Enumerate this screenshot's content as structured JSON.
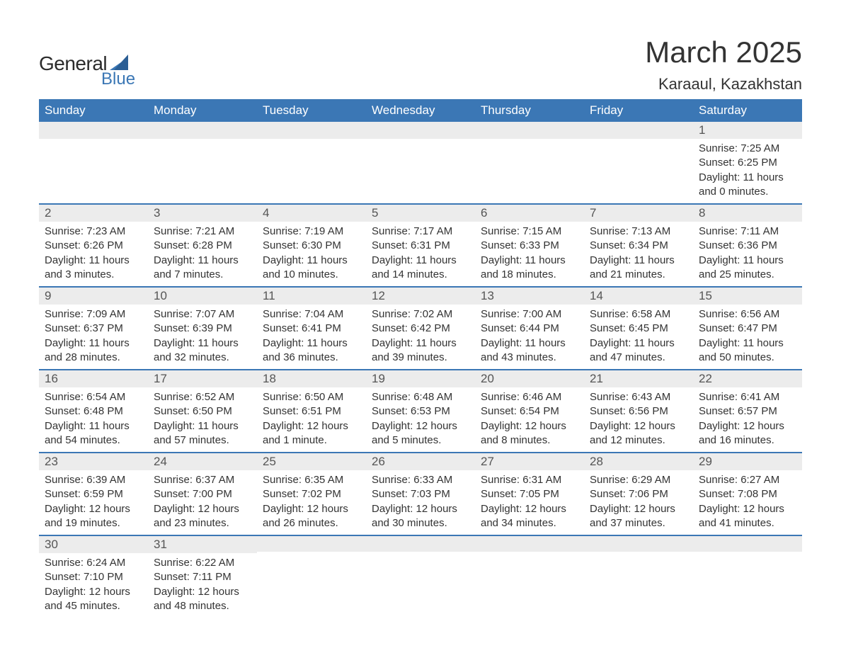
{
  "logo": {
    "general": "General",
    "blue": "Blue"
  },
  "title": "March 2025",
  "location": "Karaaul, Kazakhstan",
  "colors": {
    "header_bg": "#3b77b5",
    "header_text": "#ffffff",
    "row_band": "#ececec",
    "row_border": "#3b77b5",
    "body_text": "#333333",
    "logo_blue": "#3b77b5"
  },
  "day_headers": [
    "Sunday",
    "Monday",
    "Tuesday",
    "Wednesday",
    "Thursday",
    "Friday",
    "Saturday"
  ],
  "weeks": [
    [
      null,
      null,
      null,
      null,
      null,
      null,
      {
        "n": "1",
        "sunrise": "Sunrise: 7:25 AM",
        "sunset": "Sunset: 6:25 PM",
        "day1": "Daylight: 11 hours",
        "day2": "and 0 minutes."
      }
    ],
    [
      {
        "n": "2",
        "sunrise": "Sunrise: 7:23 AM",
        "sunset": "Sunset: 6:26 PM",
        "day1": "Daylight: 11 hours",
        "day2": "and 3 minutes."
      },
      {
        "n": "3",
        "sunrise": "Sunrise: 7:21 AM",
        "sunset": "Sunset: 6:28 PM",
        "day1": "Daylight: 11 hours",
        "day2": "and 7 minutes."
      },
      {
        "n": "4",
        "sunrise": "Sunrise: 7:19 AM",
        "sunset": "Sunset: 6:30 PM",
        "day1": "Daylight: 11 hours",
        "day2": "and 10 minutes."
      },
      {
        "n": "5",
        "sunrise": "Sunrise: 7:17 AM",
        "sunset": "Sunset: 6:31 PM",
        "day1": "Daylight: 11 hours",
        "day2": "and 14 minutes."
      },
      {
        "n": "6",
        "sunrise": "Sunrise: 7:15 AM",
        "sunset": "Sunset: 6:33 PM",
        "day1": "Daylight: 11 hours",
        "day2": "and 18 minutes."
      },
      {
        "n": "7",
        "sunrise": "Sunrise: 7:13 AM",
        "sunset": "Sunset: 6:34 PM",
        "day1": "Daylight: 11 hours",
        "day2": "and 21 minutes."
      },
      {
        "n": "8",
        "sunrise": "Sunrise: 7:11 AM",
        "sunset": "Sunset: 6:36 PM",
        "day1": "Daylight: 11 hours",
        "day2": "and 25 minutes."
      }
    ],
    [
      {
        "n": "9",
        "sunrise": "Sunrise: 7:09 AM",
        "sunset": "Sunset: 6:37 PM",
        "day1": "Daylight: 11 hours",
        "day2": "and 28 minutes."
      },
      {
        "n": "10",
        "sunrise": "Sunrise: 7:07 AM",
        "sunset": "Sunset: 6:39 PM",
        "day1": "Daylight: 11 hours",
        "day2": "and 32 minutes."
      },
      {
        "n": "11",
        "sunrise": "Sunrise: 7:04 AM",
        "sunset": "Sunset: 6:41 PM",
        "day1": "Daylight: 11 hours",
        "day2": "and 36 minutes."
      },
      {
        "n": "12",
        "sunrise": "Sunrise: 7:02 AM",
        "sunset": "Sunset: 6:42 PM",
        "day1": "Daylight: 11 hours",
        "day2": "and 39 minutes."
      },
      {
        "n": "13",
        "sunrise": "Sunrise: 7:00 AM",
        "sunset": "Sunset: 6:44 PM",
        "day1": "Daylight: 11 hours",
        "day2": "and 43 minutes."
      },
      {
        "n": "14",
        "sunrise": "Sunrise: 6:58 AM",
        "sunset": "Sunset: 6:45 PM",
        "day1": "Daylight: 11 hours",
        "day2": "and 47 minutes."
      },
      {
        "n": "15",
        "sunrise": "Sunrise: 6:56 AM",
        "sunset": "Sunset: 6:47 PM",
        "day1": "Daylight: 11 hours",
        "day2": "and 50 minutes."
      }
    ],
    [
      {
        "n": "16",
        "sunrise": "Sunrise: 6:54 AM",
        "sunset": "Sunset: 6:48 PM",
        "day1": "Daylight: 11 hours",
        "day2": "and 54 minutes."
      },
      {
        "n": "17",
        "sunrise": "Sunrise: 6:52 AM",
        "sunset": "Sunset: 6:50 PM",
        "day1": "Daylight: 11 hours",
        "day2": "and 57 minutes."
      },
      {
        "n": "18",
        "sunrise": "Sunrise: 6:50 AM",
        "sunset": "Sunset: 6:51 PM",
        "day1": "Daylight: 12 hours",
        "day2": "and 1 minute."
      },
      {
        "n": "19",
        "sunrise": "Sunrise: 6:48 AM",
        "sunset": "Sunset: 6:53 PM",
        "day1": "Daylight: 12 hours",
        "day2": "and 5 minutes."
      },
      {
        "n": "20",
        "sunrise": "Sunrise: 6:46 AM",
        "sunset": "Sunset: 6:54 PM",
        "day1": "Daylight: 12 hours",
        "day2": "and 8 minutes."
      },
      {
        "n": "21",
        "sunrise": "Sunrise: 6:43 AM",
        "sunset": "Sunset: 6:56 PM",
        "day1": "Daylight: 12 hours",
        "day2": "and 12 minutes."
      },
      {
        "n": "22",
        "sunrise": "Sunrise: 6:41 AM",
        "sunset": "Sunset: 6:57 PM",
        "day1": "Daylight: 12 hours",
        "day2": "and 16 minutes."
      }
    ],
    [
      {
        "n": "23",
        "sunrise": "Sunrise: 6:39 AM",
        "sunset": "Sunset: 6:59 PM",
        "day1": "Daylight: 12 hours",
        "day2": "and 19 minutes."
      },
      {
        "n": "24",
        "sunrise": "Sunrise: 6:37 AM",
        "sunset": "Sunset: 7:00 PM",
        "day1": "Daylight: 12 hours",
        "day2": "and 23 minutes."
      },
      {
        "n": "25",
        "sunrise": "Sunrise: 6:35 AM",
        "sunset": "Sunset: 7:02 PM",
        "day1": "Daylight: 12 hours",
        "day2": "and 26 minutes."
      },
      {
        "n": "26",
        "sunrise": "Sunrise: 6:33 AM",
        "sunset": "Sunset: 7:03 PM",
        "day1": "Daylight: 12 hours",
        "day2": "and 30 minutes."
      },
      {
        "n": "27",
        "sunrise": "Sunrise: 6:31 AM",
        "sunset": "Sunset: 7:05 PM",
        "day1": "Daylight: 12 hours",
        "day2": "and 34 minutes."
      },
      {
        "n": "28",
        "sunrise": "Sunrise: 6:29 AM",
        "sunset": "Sunset: 7:06 PM",
        "day1": "Daylight: 12 hours",
        "day2": "and 37 minutes."
      },
      {
        "n": "29",
        "sunrise": "Sunrise: 6:27 AM",
        "sunset": "Sunset: 7:08 PM",
        "day1": "Daylight: 12 hours",
        "day2": "and 41 minutes."
      }
    ],
    [
      {
        "n": "30",
        "sunrise": "Sunrise: 6:24 AM",
        "sunset": "Sunset: 7:10 PM",
        "day1": "Daylight: 12 hours",
        "day2": "and 45 minutes."
      },
      {
        "n": "31",
        "sunrise": "Sunrise: 6:22 AM",
        "sunset": "Sunset: 7:11 PM",
        "day1": "Daylight: 12 hours",
        "day2": "and 48 minutes."
      },
      null,
      null,
      null,
      null,
      null
    ]
  ]
}
